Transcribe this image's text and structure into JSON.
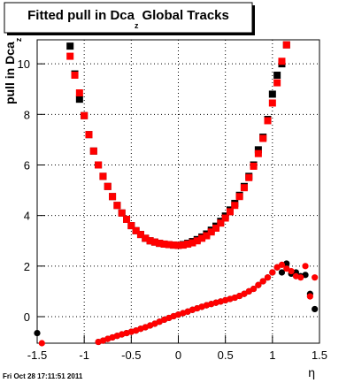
{
  "chart_data": {
    "type": "scatter",
    "title": "Fitted pull in Dca",
    "title_subscript": "z",
    "title_end": "Global Tracks",
    "y_label": "pull in Dca",
    "y_label_subscript": "z",
    "x_label": "η",
    "footer": "Fri Oct 28 17:11:51 2011",
    "xlim": [
      -1.5,
      1.5
    ],
    "xticks": [
      -1.5,
      -1,
      -0.5,
      0,
      0.5,
      1,
      1.5
    ],
    "ylim": [
      -1.05,
      10.95
    ],
    "yticks": [
      0,
      2,
      4,
      6,
      8,
      10
    ],
    "grid": true,
    "series": [
      {
        "color": "#000000",
        "marker": "square",
        "x": [
          -1.15,
          -1.1,
          -1.05,
          -1.0,
          -0.95,
          -0.9,
          -0.85,
          -0.8,
          -0.75,
          -0.7,
          -0.65,
          -0.6,
          -0.55,
          -0.5,
          -0.45,
          -0.4,
          -0.35,
          -0.3,
          -0.25,
          -0.2,
          -0.15,
          -0.1,
          -0.05,
          0,
          0.05,
          0.1,
          0.15,
          0.2,
          0.25,
          0.3,
          0.35,
          0.4,
          0.45,
          0.5,
          0.55,
          0.6,
          0.65,
          0.7,
          0.75,
          0.8,
          0.85,
          0.9,
          0.95,
          1.0,
          1.05,
          1.1,
          1.15
        ],
        "values": [
          10.7,
          9.6,
          8.6,
          7.95,
          7.2,
          6.55,
          6.0,
          5.55,
          5.15,
          4.75,
          4.4,
          4.1,
          3.85,
          3.6,
          3.4,
          3.25,
          3.1,
          3.0,
          2.95,
          2.9,
          2.87,
          2.85,
          2.83,
          2.82,
          2.85,
          2.9,
          2.97,
          3.05,
          3.15,
          3.27,
          3.42,
          3.58,
          3.77,
          3.98,
          4.22,
          4.48,
          4.8,
          5.15,
          5.55,
          6.0,
          6.6,
          7.1,
          7.8,
          8.8,
          9.55,
          10.0,
          10.75
        ]
      },
      {
        "color": "#ff0000",
        "marker": "square",
        "x": [
          -1.15,
          -1.1,
          -1.05,
          -1.0,
          -0.95,
          -0.9,
          -0.85,
          -0.8,
          -0.75,
          -0.7,
          -0.65,
          -0.6,
          -0.55,
          -0.5,
          -0.45,
          -0.4,
          -0.35,
          -0.3,
          -0.25,
          -0.2,
          -0.15,
          -0.1,
          -0.05,
          0,
          0.05,
          0.1,
          0.15,
          0.2,
          0.25,
          0.3,
          0.35,
          0.4,
          0.45,
          0.5,
          0.55,
          0.6,
          0.65,
          0.7,
          0.75,
          0.8,
          0.85,
          0.9,
          0.95,
          1.0,
          1.05,
          1.1,
          1.15
        ],
        "values": [
          10.3,
          9.55,
          8.85,
          7.95,
          7.2,
          6.55,
          6.0,
          5.55,
          5.15,
          4.75,
          4.4,
          4.1,
          3.85,
          3.6,
          3.4,
          3.25,
          3.1,
          3.0,
          2.95,
          2.9,
          2.87,
          2.85,
          2.83,
          2.82,
          2.83,
          2.87,
          2.92,
          3.0,
          3.1,
          3.2,
          3.35,
          3.5,
          3.7,
          3.9,
          4.15,
          4.4,
          4.75,
          5.1,
          5.5,
          5.95,
          6.45,
          7.05,
          7.75,
          8.45,
          9.25,
          10.1,
          10.75
        ]
      },
      {
        "color": "#000000",
        "marker": "circle",
        "x": [
          -1.5,
          -0.85,
          -0.8,
          -0.75,
          -0.7,
          -0.65,
          -0.6,
          -0.55,
          -0.5,
          -0.45,
          -0.4,
          -0.35,
          -0.3,
          -0.25,
          -0.2,
          -0.15,
          -0.1,
          -0.05,
          0,
          0.05,
          0.1,
          0.15,
          0.2,
          0.25,
          0.3,
          0.35,
          0.4,
          0.45,
          0.5,
          0.55,
          0.6,
          0.65,
          0.7,
          0.75,
          0.8,
          0.85,
          0.9,
          0.95,
          1.0,
          1.05,
          1.1,
          1.15,
          1.2,
          1.25,
          1.3,
          1.35,
          1.4,
          1.45
        ],
        "values": [
          -0.65,
          -1.0,
          -0.95,
          -0.88,
          -0.82,
          -0.76,
          -0.7,
          -0.65,
          -0.6,
          -0.55,
          -0.48,
          -0.42,
          -0.35,
          -0.28,
          -0.2,
          -0.12,
          -0.05,
          0.02,
          0.08,
          0.14,
          0.2,
          0.27,
          0.33,
          0.39,
          0.45,
          0.5,
          0.55,
          0.6,
          0.65,
          0.7,
          0.75,
          0.82,
          0.9,
          1.0,
          1.1,
          1.25,
          1.4,
          1.55,
          1.75,
          1.95,
          1.75,
          2.1,
          1.7,
          1.75,
          1.6,
          1.65,
          0.9,
          0.3
        ]
      },
      {
        "color": "#ff0000",
        "marker": "circle",
        "x": [
          -1.45,
          -0.85,
          -0.8,
          -0.75,
          -0.7,
          -0.65,
          -0.6,
          -0.55,
          -0.5,
          -0.45,
          -0.4,
          -0.35,
          -0.3,
          -0.25,
          -0.2,
          -0.15,
          -0.1,
          -0.05,
          0,
          0.05,
          0.1,
          0.15,
          0.2,
          0.25,
          0.3,
          0.35,
          0.4,
          0.45,
          0.5,
          0.55,
          0.6,
          0.65,
          0.7,
          0.75,
          0.8,
          0.85,
          0.9,
          0.95,
          1.0,
          1.05,
          1.1,
          1.15,
          1.2,
          1.25,
          1.3,
          1.35,
          1.4,
          1.45
        ],
        "values": [
          -1.05,
          -1.0,
          -0.95,
          -0.88,
          -0.82,
          -0.76,
          -0.7,
          -0.65,
          -0.6,
          -0.55,
          -0.48,
          -0.42,
          -0.35,
          -0.28,
          -0.2,
          -0.12,
          -0.05,
          0.02,
          0.08,
          0.14,
          0.2,
          0.27,
          0.33,
          0.39,
          0.45,
          0.5,
          0.55,
          0.6,
          0.65,
          0.7,
          0.75,
          0.82,
          0.9,
          1.0,
          1.1,
          1.25,
          1.4,
          1.55,
          1.75,
          1.95,
          2.05,
          1.9,
          1.8,
          1.6,
          1.55,
          2.0,
          0.8,
          1.55
        ]
      }
    ]
  }
}
